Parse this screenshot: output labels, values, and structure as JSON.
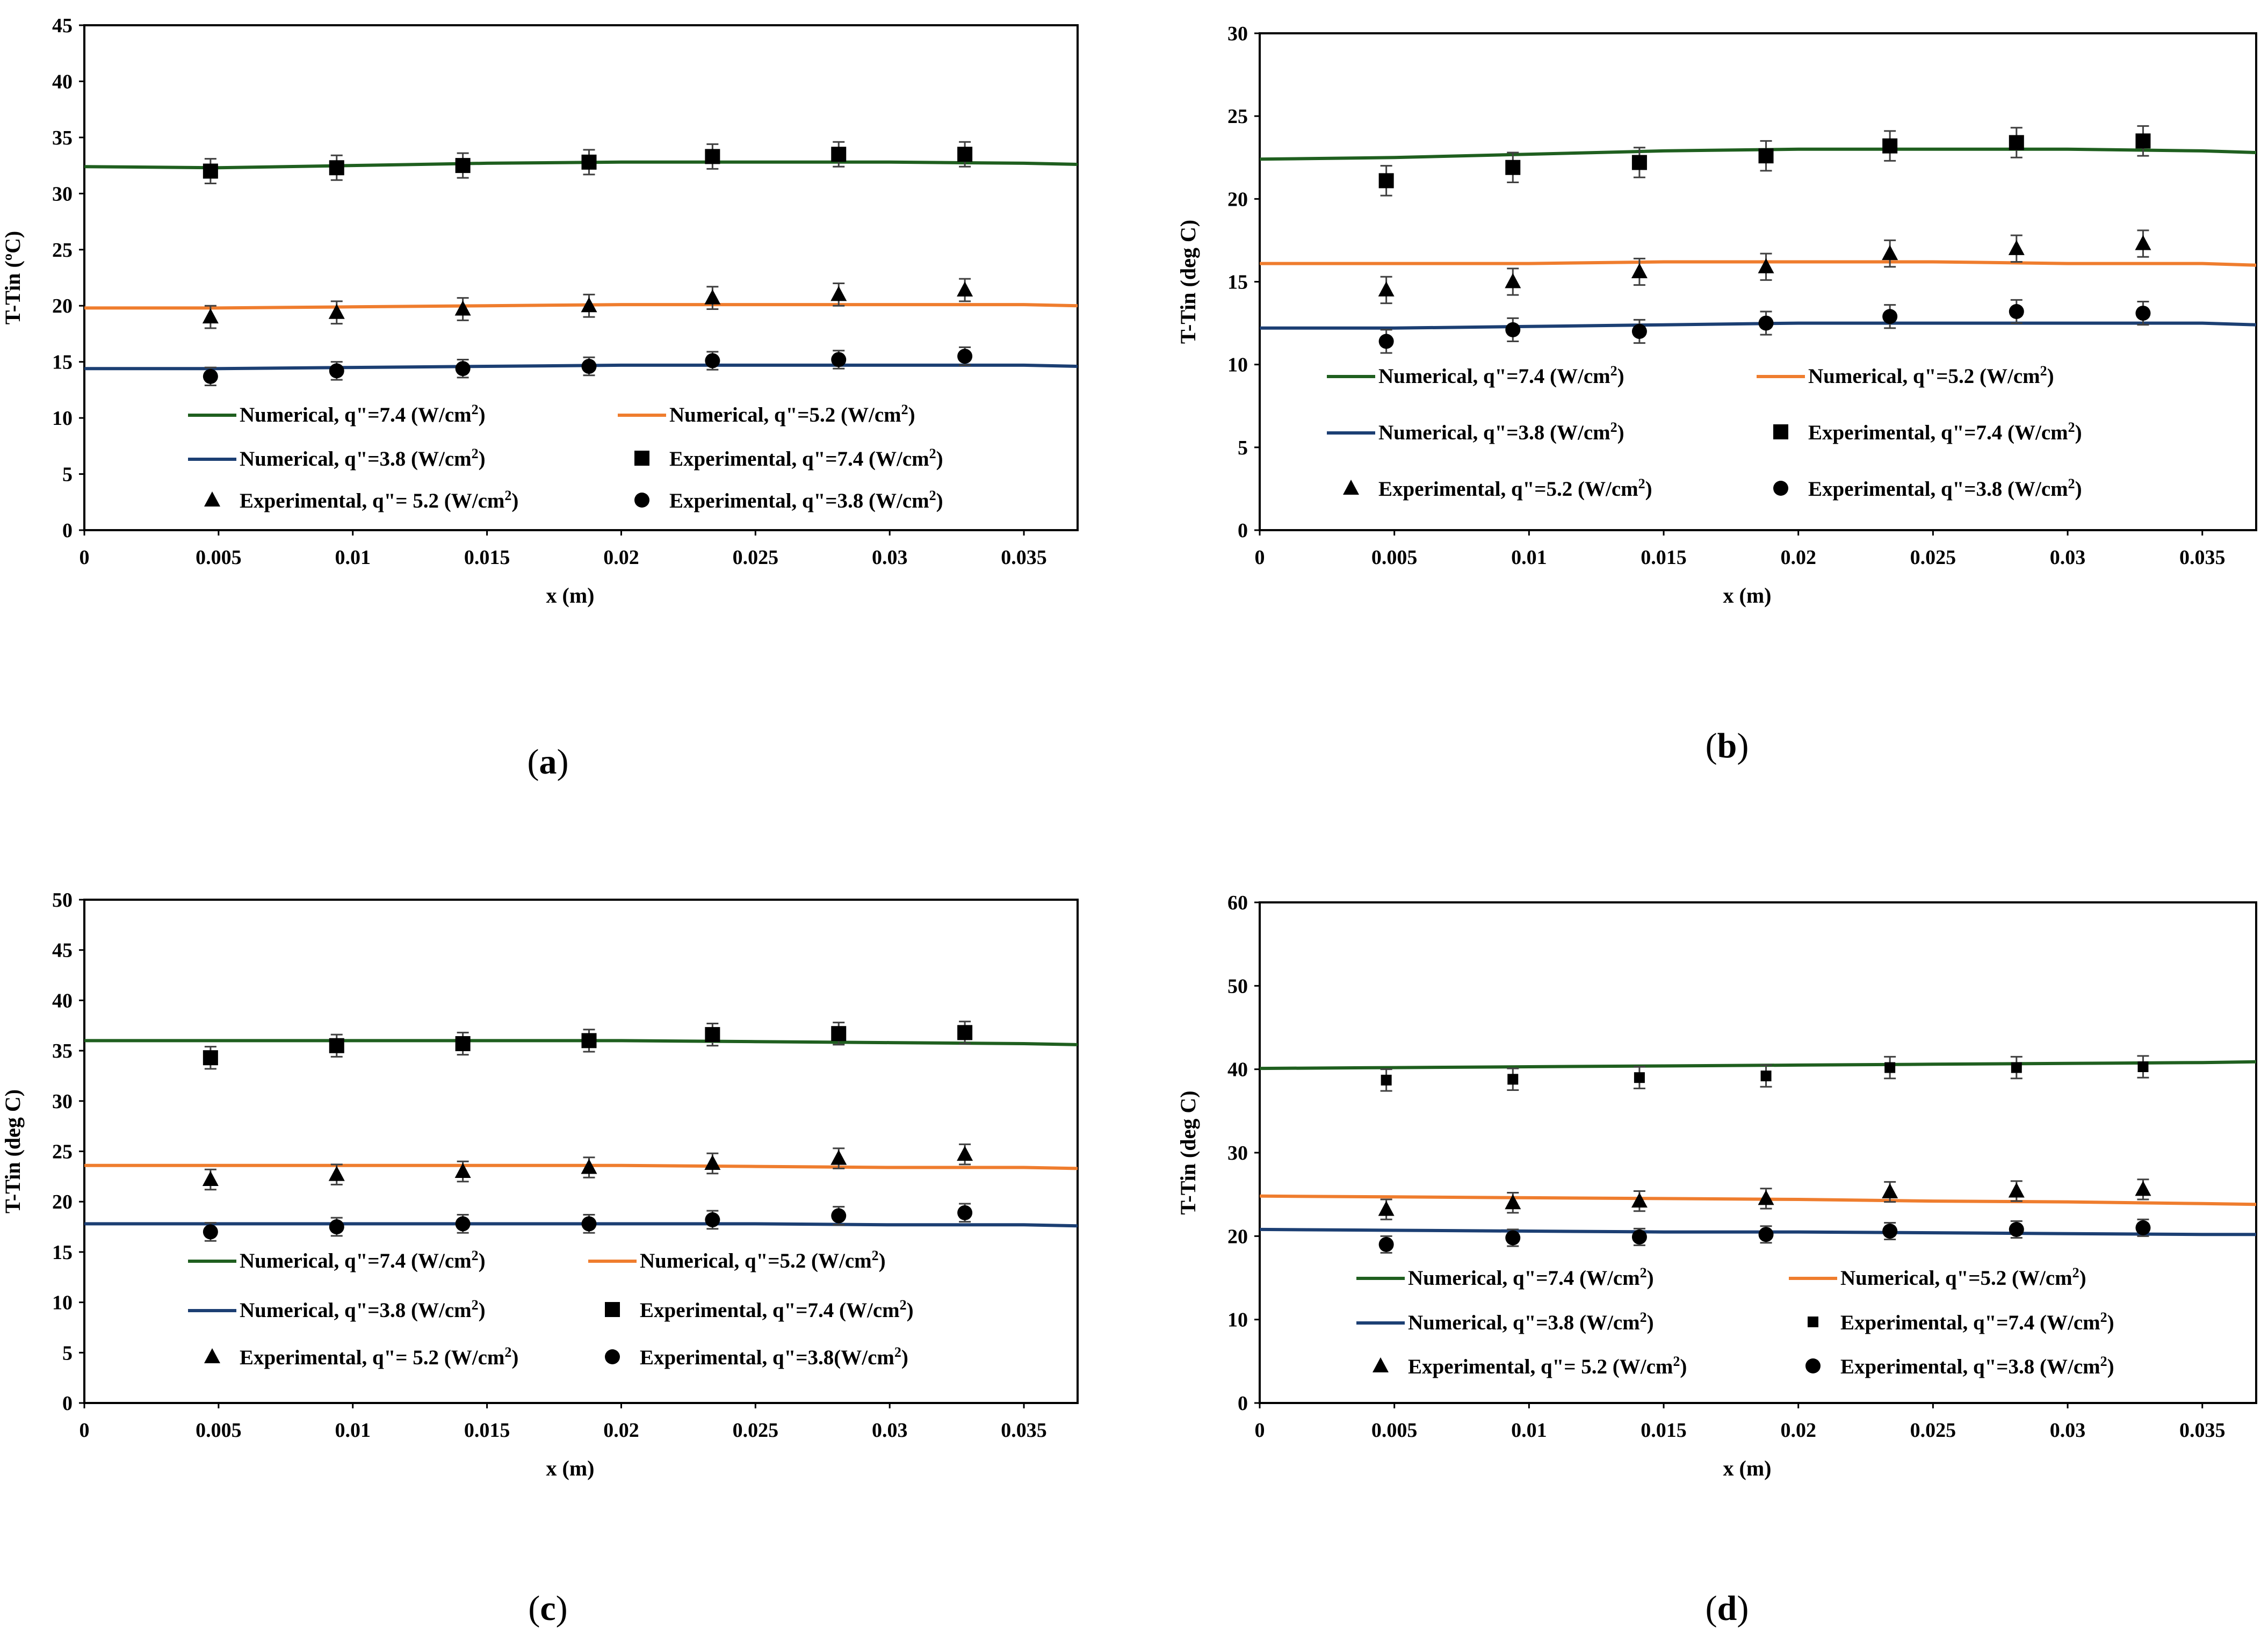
{
  "colors": {
    "q74": "#1f5f1f",
    "q52": "#ef7d2e",
    "q38": "#1c3f73",
    "marker": "#000000"
  },
  "chart_data": [
    {
      "type": "line",
      "panel_caption": "(a)",
      "caption_letter": "a",
      "xlabel": "x (m)",
      "ylabel": "T-Tin (ºC)",
      "xlim": [
        0,
        0.037
      ],
      "ylim": [
        0,
        45
      ],
      "xticks": [
        "0",
        "0.005",
        "0.01",
        "0.015",
        "0.02",
        "0.025",
        "0.03",
        "0.035"
      ],
      "yticks": [
        "0",
        "5",
        "10",
        "15",
        "20",
        "25",
        "30",
        "35",
        "40",
        "45"
      ],
      "legend": [
        {
          "kind": "line",
          "series": "q74",
          "prefix": "Numerical, q\"=7.4 ",
          "unit": "(W/cm",
          "sup": "2",
          "close": ")"
        },
        {
          "kind": "line",
          "series": "q52",
          "prefix": "Numerical, q\"=5.2 ",
          "unit": "(W/cm",
          "sup": "2",
          "close": ")"
        },
        {
          "kind": "line",
          "series": "q38",
          "prefix": "Numerical, q\"=3.8 ",
          "unit": "(W/cm",
          "sup": "2",
          "close": ")"
        },
        {
          "kind": "square",
          "series": "marker",
          "prefix": "Experimental, q\"=7.4 ",
          "unit": "(W/cm",
          "sup": "2",
          "close": ")"
        },
        {
          "kind": "triangle",
          "series": "marker",
          "prefix": "Experimental, q\"= 5.2 ",
          "unit": "(W/cm",
          "sup": "2",
          "close": ")"
        },
        {
          "kind": "circle",
          "series": "marker",
          "prefix": "Experimental, q\"=3.8 ",
          "unit": "(W/cm",
          "sup": "2",
          "close": ")"
        }
      ],
      "numerical": [
        {
          "name": "Numerical, q\"=7.4",
          "color_key": "q74",
          "x": [
            0,
            0.005,
            0.01,
            0.015,
            0.02,
            0.025,
            0.03,
            0.035,
            0.037
          ],
          "y": [
            32.4,
            32.3,
            32.5,
            32.7,
            32.8,
            32.8,
            32.8,
            32.7,
            32.6
          ]
        },
        {
          "name": "Numerical, q\"=5.2",
          "color_key": "q52",
          "x": [
            0,
            0.005,
            0.01,
            0.015,
            0.02,
            0.025,
            0.03,
            0.035,
            0.037
          ],
          "y": [
            19.8,
            19.8,
            19.9,
            20.0,
            20.1,
            20.1,
            20.1,
            20.1,
            20.0
          ]
        },
        {
          "name": "Numerical, q\"=3.8",
          "color_key": "q38",
          "x": [
            0,
            0.005,
            0.01,
            0.015,
            0.02,
            0.025,
            0.03,
            0.035,
            0.037
          ],
          "y": [
            14.4,
            14.4,
            14.5,
            14.6,
            14.7,
            14.7,
            14.7,
            14.7,
            14.6
          ]
        }
      ],
      "experimental": [
        {
          "name": "Experimental, q\"=7.4",
          "marker": "square",
          "x": [
            0.0047,
            0.0094,
            0.0141,
            0.0188,
            0.0234,
            0.0281,
            0.0328
          ],
          "y": [
            32.0,
            32.3,
            32.5,
            32.8,
            33.3,
            33.5,
            33.5
          ],
          "err": 1.1
        },
        {
          "name": "Experimental, q\"= 5.2",
          "marker": "triangle",
          "x": [
            0.0047,
            0.0094,
            0.0141,
            0.0188,
            0.0234,
            0.0281,
            0.0328
          ],
          "y": [
            19.0,
            19.4,
            19.7,
            20.0,
            20.7,
            21.0,
            21.4
          ],
          "err": 1.0
        },
        {
          "name": "Experimental, q\"=3.8",
          "marker": "circle",
          "x": [
            0.0047,
            0.0094,
            0.0141,
            0.0188,
            0.0234,
            0.0281,
            0.0328
          ],
          "y": [
            13.7,
            14.2,
            14.4,
            14.6,
            15.1,
            15.2,
            15.5
          ],
          "err": 0.8
        }
      ]
    },
    {
      "type": "line",
      "panel_caption": "(b)",
      "caption_letter": "b",
      "xlabel": "x (m)",
      "ylabel": "T-Tin (deg C)",
      "xlim": [
        0,
        0.037
      ],
      "ylim": [
        0,
        30
      ],
      "xticks": [
        "0",
        "0.005",
        "0.01",
        "0.015",
        "0.02",
        "0.025",
        "0.03",
        "0.035"
      ],
      "yticks": [
        "0",
        "5",
        "10",
        "15",
        "20",
        "25",
        "30"
      ],
      "legend": [
        {
          "kind": "line",
          "series": "q74",
          "prefix": "Numerical, q\"=7.4 ",
          "unit": "(W/cm",
          "sup": "2",
          "close": ")"
        },
        {
          "kind": "line",
          "series": "q52",
          "prefix": "Numerical, q\"=5.2 ",
          "unit": "(W/cm",
          "sup": "2",
          "close": ")"
        },
        {
          "kind": "line",
          "series": "q38",
          "prefix": "Numerical, q\"=3.8 ",
          "unit": "(W/cm",
          "sup": "2",
          "close": ")"
        },
        {
          "kind": "square",
          "series": "marker",
          "prefix": "Experimental, q\"=7.4 ",
          "unit": "(W/cm",
          "sup": "2",
          "close": ")"
        },
        {
          "kind": "triangle",
          "series": "marker",
          "prefix": "Experimental, q\"=5.2 ",
          "unit": "(W/cm",
          "sup": "2",
          "close": ")"
        },
        {
          "kind": "circle",
          "series": "marker",
          "prefix": "Experimental, q\"=3.8 ",
          "unit": "(W/cm",
          "sup": "2",
          "close": ")"
        }
      ],
      "numerical": [
        {
          "name": "Numerical, q\"=7.4",
          "color_key": "q74",
          "x": [
            0,
            0.005,
            0.01,
            0.015,
            0.02,
            0.025,
            0.03,
            0.035,
            0.037
          ],
          "y": [
            22.4,
            22.5,
            22.7,
            22.9,
            23.0,
            23.0,
            23.0,
            22.9,
            22.8
          ]
        },
        {
          "name": "Numerical, q\"=5.2",
          "color_key": "q52",
          "x": [
            0,
            0.005,
            0.01,
            0.015,
            0.02,
            0.025,
            0.03,
            0.035,
            0.037
          ],
          "y": [
            16.1,
            16.1,
            16.1,
            16.2,
            16.2,
            16.2,
            16.1,
            16.1,
            16.0
          ]
        },
        {
          "name": "Numerical, q\"=3.8",
          "color_key": "q38",
          "x": [
            0,
            0.005,
            0.01,
            0.015,
            0.02,
            0.025,
            0.03,
            0.035,
            0.037
          ],
          "y": [
            12.2,
            12.2,
            12.3,
            12.4,
            12.5,
            12.5,
            12.5,
            12.5,
            12.4
          ]
        }
      ],
      "experimental": [
        {
          "name": "Experimental, q\"=7.4",
          "marker": "square",
          "x": [
            0.0047,
            0.0094,
            0.0141,
            0.0188,
            0.0234,
            0.0281,
            0.0328
          ],
          "y": [
            21.1,
            21.9,
            22.2,
            22.6,
            23.2,
            23.4,
            23.5
          ],
          "err": 0.9
        },
        {
          "name": "Experimental, q\"=5.2",
          "marker": "triangle",
          "x": [
            0.0047,
            0.0094,
            0.0141,
            0.0188,
            0.0234,
            0.0281,
            0.0328
          ],
          "y": [
            14.5,
            15.0,
            15.6,
            15.9,
            16.7,
            17.0,
            17.3
          ],
          "err": 0.8
        },
        {
          "name": "Experimental, q\"=3.8",
          "marker": "circle",
          "x": [
            0.0047,
            0.0094,
            0.0141,
            0.0188,
            0.0234,
            0.0281,
            0.0328
          ],
          "y": [
            11.4,
            12.1,
            12.0,
            12.5,
            12.9,
            13.2,
            13.1
          ],
          "err": 0.7
        }
      ]
    },
    {
      "type": "line",
      "panel_caption": "(c)",
      "caption_letter": "c",
      "xlabel": "x (m)",
      "ylabel": "T-Tin (deg C)",
      "xlim": [
        0,
        0.037
      ],
      "ylim": [
        0,
        50
      ],
      "xticks": [
        "0",
        "0.005",
        "0.01",
        "0.015",
        "0.02",
        "0.025",
        "0.03",
        "0.035"
      ],
      "yticks": [
        "0",
        "5",
        "10",
        "15",
        "20",
        "25",
        "30",
        "35",
        "40",
        "45",
        "50"
      ],
      "legend": [
        {
          "kind": "line",
          "series": "q74",
          "prefix": "Numerical, q\"=7.4 ",
          "unit": "(W/cm",
          "sup": "2",
          "close": ")"
        },
        {
          "kind": "line",
          "series": "q52",
          "prefix": "Numerical, q\"=5.2 ",
          "unit": "(W/cm",
          "sup": "2",
          "close": ")"
        },
        {
          "kind": "line",
          "series": "q38",
          "prefix": "Numerical, q\"=3.8 ",
          "unit": "(W/cm",
          "sup": "2",
          "close": ")"
        },
        {
          "kind": "square",
          "series": "marker",
          "prefix": "Experimental, q\"=7.4 ",
          "unit": "(W/cm",
          "sup": "2",
          "close": ")"
        },
        {
          "kind": "triangle",
          "series": "marker",
          "prefix": "Experimental, q\"= 5.2 ",
          "unit": "(W/cm",
          "sup": "2",
          "close": ")"
        },
        {
          "kind": "circle",
          "series": "marker",
          "prefix": "Experimental, q\"=3.8",
          "unit": "(W/cm",
          "sup": "2",
          "close": ")"
        }
      ],
      "numerical": [
        {
          "name": "Numerical, q\"=7.4",
          "color_key": "q74",
          "x": [
            0,
            0.005,
            0.01,
            0.015,
            0.02,
            0.025,
            0.03,
            0.035,
            0.037
          ],
          "y": [
            36.0,
            36.0,
            36.0,
            36.0,
            36.0,
            35.9,
            35.8,
            35.7,
            35.6
          ]
        },
        {
          "name": "Numerical, q\"=5.2",
          "color_key": "q52",
          "x": [
            0,
            0.005,
            0.01,
            0.015,
            0.02,
            0.025,
            0.03,
            0.035,
            0.037
          ],
          "y": [
            23.6,
            23.6,
            23.6,
            23.6,
            23.6,
            23.5,
            23.4,
            23.4,
            23.3
          ]
        },
        {
          "name": "Numerical, q\"=3.8",
          "color_key": "q38",
          "x": [
            0,
            0.005,
            0.01,
            0.015,
            0.02,
            0.025,
            0.03,
            0.035,
            0.037
          ],
          "y": [
            17.8,
            17.8,
            17.8,
            17.8,
            17.8,
            17.8,
            17.7,
            17.7,
            17.6
          ]
        }
      ],
      "experimental": [
        {
          "name": "Experimental, q\"=7.4",
          "marker": "square",
          "x": [
            0.0047,
            0.0094,
            0.0141,
            0.0188,
            0.0234,
            0.0281,
            0.0328
          ],
          "y": [
            34.3,
            35.5,
            35.7,
            36.0,
            36.6,
            36.7,
            36.8
          ],
          "err": 1.1
        },
        {
          "name": "Experimental, q\"= 5.2",
          "marker": "triangle",
          "x": [
            0.0047,
            0.0094,
            0.0141,
            0.0188,
            0.0234,
            0.0281,
            0.0328
          ],
          "y": [
            22.2,
            22.7,
            23.0,
            23.4,
            23.8,
            24.3,
            24.7
          ],
          "err": 1.0
        },
        {
          "name": "Experimental, q\"=3.8",
          "marker": "circle",
          "x": [
            0.0047,
            0.0094,
            0.0141,
            0.0188,
            0.0234,
            0.0281,
            0.0328
          ],
          "y": [
            17.0,
            17.5,
            17.8,
            17.8,
            18.2,
            18.6,
            18.9
          ],
          "err": 0.9
        }
      ]
    },
    {
      "type": "line",
      "panel_caption": "(d)",
      "caption_letter": "d",
      "xlabel": "x (m)",
      "ylabel": "T-Tin (deg C)",
      "xlim": [
        0,
        0.037
      ],
      "ylim": [
        0,
        60
      ],
      "xticks": [
        "0",
        "0.005",
        "0.01",
        "0.015",
        "0.02",
        "0.025",
        "0.03",
        "0.035"
      ],
      "yticks": [
        "0",
        "10",
        "20",
        "30",
        "40",
        "50",
        "60"
      ],
      "legend": [
        {
          "kind": "line",
          "series": "q74",
          "prefix": "Numerical, q\"=7.4 ",
          "unit": "(W/cm",
          "sup": "2",
          "close": ")"
        },
        {
          "kind": "line",
          "series": "q52",
          "prefix": "Numerical, q\"=5.2 ",
          "unit": "(W/cm",
          "sup": "2",
          "close": ")"
        },
        {
          "kind": "line",
          "series": "q38",
          "prefix": "Numerical, q\"=3.8 ",
          "unit": "(W/cm",
          "sup": "2",
          "close": ")"
        },
        {
          "kind": "square-small",
          "series": "marker",
          "prefix": "Experimental, q\"=7.4 ",
          "unit": "(W/cm",
          "sup": "2",
          "close": ")"
        },
        {
          "kind": "triangle",
          "series": "marker",
          "prefix": "Experimental, q\"= 5.2 ",
          "unit": "(W/cm",
          "sup": "2",
          "close": ")"
        },
        {
          "kind": "circle",
          "series": "marker",
          "prefix": "Experimental, q\"=3.8 ",
          "unit": "(W/cm",
          "sup": "2",
          "close": ")"
        }
      ],
      "numerical": [
        {
          "name": "Numerical, q\"=7.4",
          "color_key": "q74",
          "x": [
            0,
            0.005,
            0.01,
            0.015,
            0.02,
            0.025,
            0.03,
            0.035,
            0.037
          ],
          "y": [
            40.1,
            40.2,
            40.3,
            40.4,
            40.5,
            40.6,
            40.7,
            40.8,
            40.9
          ]
        },
        {
          "name": "Numerical, q\"=5.2",
          "color_key": "q52",
          "x": [
            0,
            0.005,
            0.01,
            0.015,
            0.02,
            0.025,
            0.03,
            0.035,
            0.037
          ],
          "y": [
            24.8,
            24.7,
            24.6,
            24.5,
            24.4,
            24.2,
            24.1,
            23.9,
            23.8
          ]
        },
        {
          "name": "Numerical, q\"=3.8",
          "color_key": "q38",
          "x": [
            0,
            0.005,
            0.01,
            0.015,
            0.02,
            0.025,
            0.03,
            0.035,
            0.037
          ],
          "y": [
            20.8,
            20.7,
            20.6,
            20.5,
            20.5,
            20.4,
            20.3,
            20.2,
            20.2
          ]
        }
      ],
      "experimental": [
        {
          "name": "Experimental, q\"=7.4",
          "marker": "square-small",
          "x": [
            0.0047,
            0.0094,
            0.0141,
            0.0188,
            0.0234,
            0.0281,
            0.0328
          ],
          "y": [
            38.7,
            38.8,
            39.0,
            39.2,
            40.2,
            40.2,
            40.3
          ],
          "err": 1.3
        },
        {
          "name": "Experimental, q\"= 5.2",
          "marker": "triangle",
          "x": [
            0.0047,
            0.0094,
            0.0141,
            0.0188,
            0.0234,
            0.0281,
            0.0328
          ],
          "y": [
            23.2,
            24.0,
            24.2,
            24.5,
            25.3,
            25.4,
            25.6
          ],
          "err": 1.2
        },
        {
          "name": "Experimental, q\"=3.8",
          "marker": "circle",
          "x": [
            0.0047,
            0.0094,
            0.0141,
            0.0188,
            0.0234,
            0.0281,
            0.0328
          ],
          "y": [
            19.0,
            19.8,
            19.9,
            20.2,
            20.6,
            20.8,
            21.0
          ],
          "err": 1.0
        }
      ]
    }
  ]
}
